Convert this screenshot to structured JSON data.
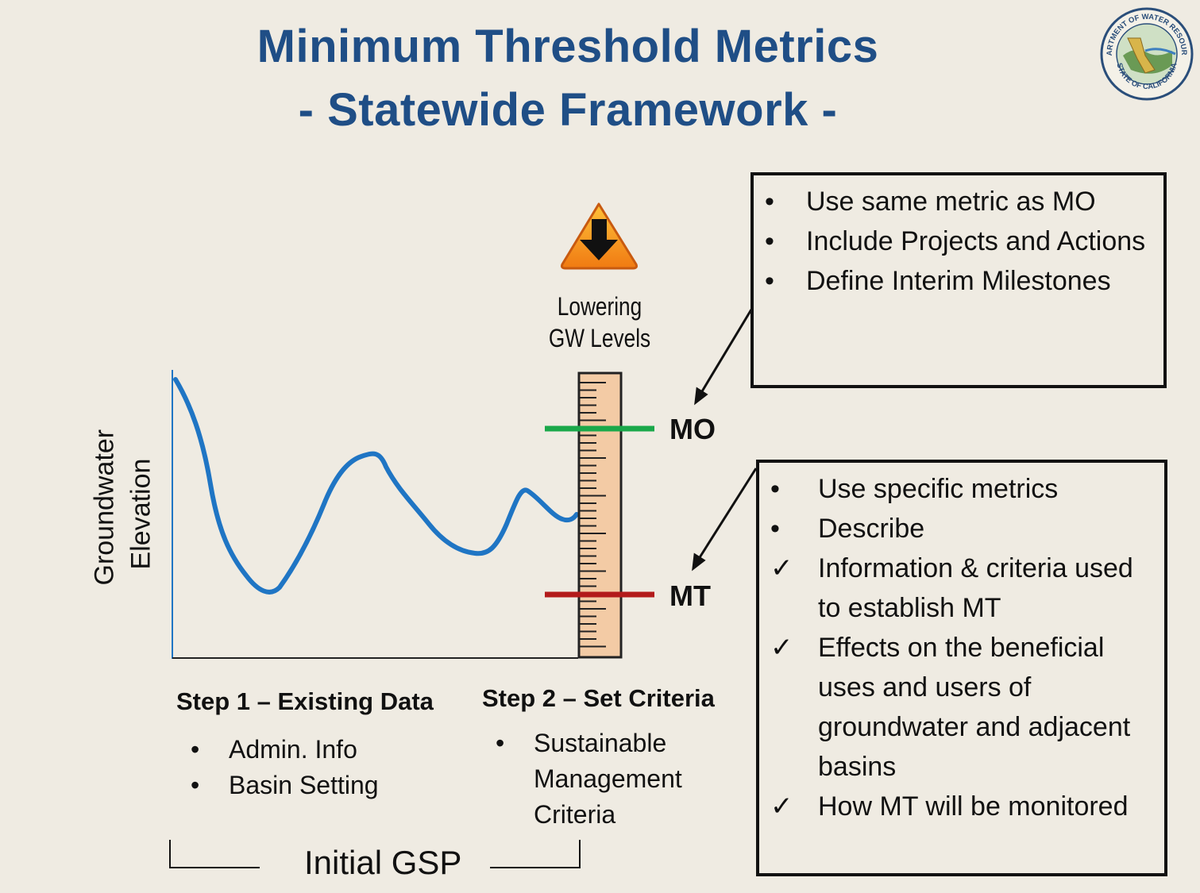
{
  "title": {
    "line1": "Minimum Threshold Metrics",
    "line2": "- Statewide Framework -"
  },
  "logo": {
    "text_top": "DEPARTMENT OF WATER RESOURCES",
    "text_bottom": "STATE OF CALIFORNIA"
  },
  "axis": {
    "ylabel_line1": "Groundwater",
    "ylabel_line2": "Elevation"
  },
  "gauge": {
    "icon": "down-arrow-warning-icon",
    "label_line1": "Lowering",
    "label_line2": "GW Levels"
  },
  "markers": {
    "mo": {
      "label": "MO",
      "color": "#1aa84a"
    },
    "mt": {
      "label": "MT",
      "color": "#b31b1b"
    }
  },
  "box_mo": {
    "items": [
      {
        "mark": "•",
        "text": "Use same metric as MO"
      },
      {
        "mark": "•",
        "text": "Include Projects and Actions"
      },
      {
        "mark": "•",
        "text": "Define Interim Milestones"
      }
    ]
  },
  "box_mt": {
    "items": [
      {
        "mark": "•",
        "text": "Use specific metrics"
      },
      {
        "mark": "•",
        "text": "Describe"
      },
      {
        "mark": "✓",
        "text": "Information & criteria used to establish MT"
      },
      {
        "mark": "✓",
        "text": "Effects on the beneficial uses and users of groundwater and adjacent basins"
      },
      {
        "mark": "✓",
        "text": "How MT will be monitored"
      }
    ]
  },
  "step1": {
    "heading": "Step 1 – Existing Data",
    "items": [
      "Admin. Info",
      "Basin Setting"
    ]
  },
  "step2": {
    "heading": "Step 2 – Set Criteria",
    "items": [
      "Sustainable Management Criteria"
    ]
  },
  "bracket_label": "Initial GSP",
  "colors": {
    "title": "#1f4e86",
    "curve": "#1f75c4",
    "ruler": "#f3cba5",
    "background": "#efebe2"
  }
}
